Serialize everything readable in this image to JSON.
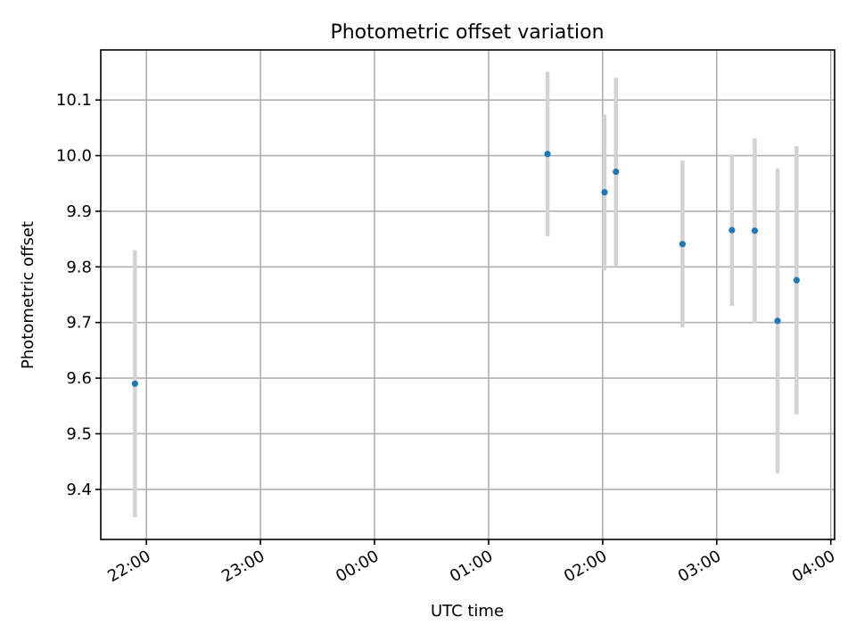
{
  "chart_data": {
    "type": "scatter",
    "title": "Photometric offset variation",
    "xlabel": "UTC time",
    "ylabel": "Photometric offset",
    "x_ticks": [
      "22:00",
      "23:00",
      "00:00",
      "01:00",
      "02:00",
      "03:00",
      "04:00"
    ],
    "xlim": [
      "21:36",
      "04:02"
    ],
    "y_ticks": [
      "9.4",
      "9.5",
      "9.6",
      "9.7",
      "9.8",
      "9.9",
      "10.0",
      "10.1"
    ],
    "ylim": [
      9.31,
      10.19
    ],
    "grid": true,
    "colors": {
      "point": "#1f77b4",
      "errorbar": "#d3d3d3"
    },
    "series": [
      {
        "points": [
          {
            "x": "21:54",
            "y": 9.59,
            "err": 0.24
          },
          {
            "x": "01:31",
            "y": 10.003,
            "err": 0.148
          },
          {
            "x": "02:01",
            "y": 9.934,
            "err": 0.14
          },
          {
            "x": "02:07",
            "y": 9.971,
            "err": 0.169
          },
          {
            "x": "02:42",
            "y": 9.841,
            "err": 0.15
          },
          {
            "x": "03:08",
            "y": 9.866,
            "err": 0.136
          },
          {
            "x": "03:20",
            "y": 9.865,
            "err": 0.166
          },
          {
            "x": "03:32",
            "y": 9.703,
            "err": 0.274
          },
          {
            "x": "03:42",
            "y": 9.776,
            "err": 0.241
          }
        ]
      }
    ]
  }
}
